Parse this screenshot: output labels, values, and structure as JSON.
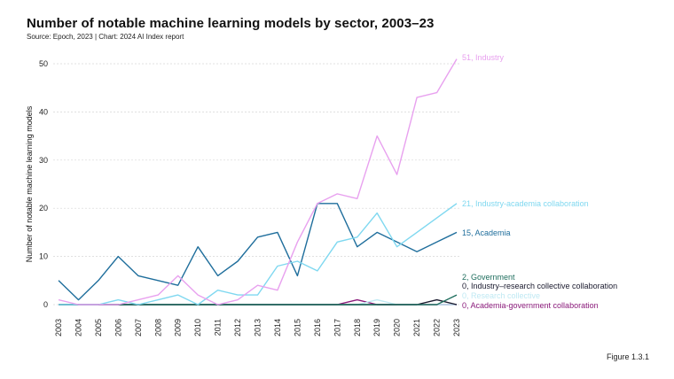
{
  "header": {
    "title": "Number of notable machine learning models by sector, 2003–23",
    "source": "Source: Epoch, 2023 | Chart: 2024 AI Index report"
  },
  "footer": {
    "figure": "Figure 1.3.1"
  },
  "chart_data": {
    "type": "line",
    "title": "Number of notable machine learning models by sector, 2003–23",
    "xlabel": "",
    "ylabel": "Number of notable machine learning models",
    "ylim": [
      0,
      53
    ],
    "yticks": [
      0,
      10,
      20,
      30,
      40,
      50
    ],
    "grid": true,
    "x": [
      2003,
      2004,
      2005,
      2006,
      2007,
      2008,
      2009,
      2010,
      2011,
      2012,
      2013,
      2014,
      2015,
      2016,
      2017,
      2018,
      2019,
      2020,
      2021,
      2022,
      2023
    ],
    "series": [
      {
        "name": "Industry",
        "color": "#e8a1ef",
        "label": "51, Industry",
        "values": [
          1,
          0,
          0,
          0,
          1,
          2,
          6,
          2,
          0,
          1,
          4,
          3,
          13,
          21,
          23,
          22,
          35,
          27,
          43,
          44,
          51
        ]
      },
      {
        "name": "Industry-academia collaboration",
        "color": "#7fd8f0",
        "label": "21, Industry-academia collaboration",
        "values": [
          0,
          0,
          0,
          1,
          0,
          1,
          2,
          0,
          3,
          2,
          2,
          8,
          9,
          7,
          13,
          14,
          19,
          12,
          15,
          18,
          21
        ]
      },
      {
        "name": "Academia",
        "color": "#1f6e9c",
        "label": "15, Academia",
        "values": [
          5,
          1,
          5,
          10,
          6,
          5,
          4,
          12,
          6,
          9,
          14,
          15,
          6,
          21,
          21,
          12,
          15,
          13,
          11,
          13,
          15
        ]
      },
      {
        "name": "Government",
        "color": "#1f6e5e",
        "label": "2, Government",
        "values": [
          0,
          0,
          0,
          0,
          0,
          0,
          0,
          0,
          0,
          0,
          0,
          0,
          0,
          0,
          0,
          0,
          0,
          0,
          0,
          0,
          2
        ]
      },
      {
        "name": "Industry–research collective collaboration",
        "color": "#1a1a2e",
        "label": "0, Industry–research collective collaboration",
        "values": [
          0,
          0,
          0,
          0,
          0,
          0,
          0,
          0,
          0,
          0,
          0,
          0,
          0,
          0,
          0,
          0,
          0,
          0,
          0,
          1,
          0
        ]
      },
      {
        "name": "Research collective",
        "color": "#bfe9f3",
        "label": "0, Research collective",
        "values": [
          0,
          0,
          0,
          0,
          0,
          0,
          0,
          0,
          0,
          0,
          0,
          0,
          0,
          0,
          0,
          0,
          1,
          0,
          0,
          0,
          0
        ]
      },
      {
        "name": "Academia-government collaboration",
        "color": "#8a1a7a",
        "label": "0, Academia-government collaboration",
        "values": [
          0,
          0,
          0,
          0,
          0,
          0,
          0,
          0,
          0,
          0,
          0,
          0,
          0,
          0,
          0,
          1,
          0,
          0,
          0,
          0,
          0
        ]
      }
    ]
  }
}
